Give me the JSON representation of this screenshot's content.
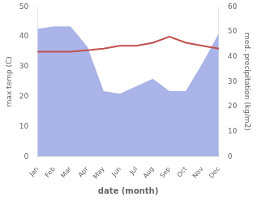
{
  "chart_data": {
    "type": "line",
    "xlabel": "date (month)",
    "ylabel": "max temp (C)",
    "y2label": "med. precipitation (kg/m2)",
    "categories": [
      "Jan",
      "Feb",
      "Mar",
      "Apr",
      "May",
      "Jun",
      "Jul",
      "Aug",
      "Sep",
      "Oct",
      "Nov",
      "Dec"
    ],
    "series": [
      {
        "type": "line",
        "color": "#c0504d",
        "values": [
          35,
          35,
          35,
          35.5,
          36,
          37,
          37,
          38,
          40,
          38,
          37,
          36
        ]
      },
      {
        "type": "area",
        "color": "#aab4e8",
        "axis": "y2",
        "values": [
          51,
          52,
          52,
          44,
          26,
          25,
          28,
          31,
          26,
          26,
          37,
          49
        ]
      }
    ],
    "ylim": [
      0,
      50
    ],
    "yticks": [
      0,
      10,
      20,
      30,
      40,
      50
    ],
    "y2lim": [
      0,
      60
    ],
    "y2ticks": [
      0,
      10,
      20,
      30,
      40,
      50,
      60
    ],
    "grid": false
  }
}
